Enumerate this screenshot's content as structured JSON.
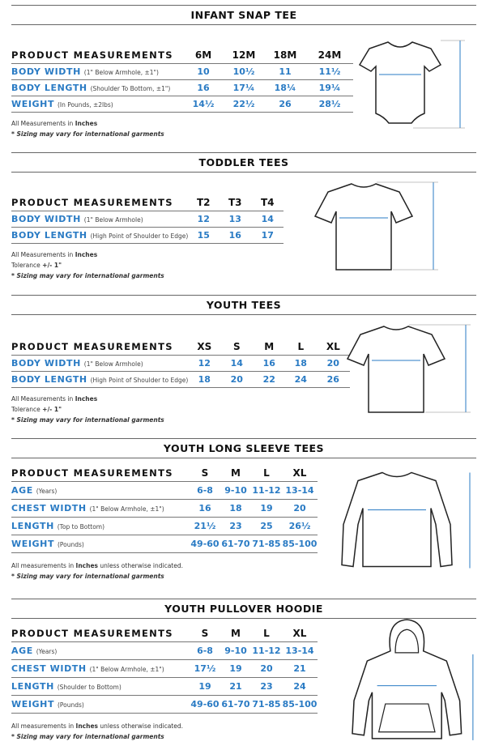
{
  "sections": [
    {
      "title": "INFANT SNAP TEE",
      "header": "PRODUCT MEASUREMENTS",
      "sizes": [
        "6M",
        "12M",
        "18M",
        "24M"
      ],
      "rows": [
        {
          "name": "BODY WIDTH",
          "sub": "(1\" Below Armhole, ±1\")",
          "values": [
            "10",
            "10½",
            "11",
            "11½"
          ]
        },
        {
          "name": "BODY LENGTH",
          "sub": "(Shoulder To Bottom, ±1\")",
          "values": [
            "16",
            "17¼",
            "18¼",
            "19¼"
          ]
        },
        {
          "name": "WEIGHT",
          "sub": "(In Pounds, ±2lbs)",
          "values": [
            "14½",
            "22½",
            "26",
            "28½"
          ]
        }
      ],
      "notes": [
        [
          {
            "t": "All Measurements in "
          },
          {
            "t": "Inches",
            "b": true
          }
        ],
        [
          {
            "t": "* Sizing may vary for international garments",
            "i": true
          }
        ]
      ],
      "garment": "onesie"
    },
    {
      "title": "TODDLER TEES",
      "header": "PRODUCT MEASUREMENTS",
      "sizes": [
        "T2",
        "T3",
        "T4"
      ],
      "rows": [
        {
          "name": "BODY WIDTH",
          "sub": "(1\" Below Armhole)",
          "values": [
            "12",
            "13",
            "14"
          ]
        },
        {
          "name": "BODY LENGTH",
          "sub": "(High Point of Shoulder to Edge)",
          "values": [
            "15",
            "16",
            "17"
          ]
        }
      ],
      "notes": [
        [
          {
            "t": "All Measurements in "
          },
          {
            "t": "Inches",
            "b": true
          }
        ],
        [
          {
            "t": "Tolerance "
          },
          {
            "t": "+/- 1\"",
            "b": true
          }
        ],
        [
          {
            "t": "* Sizing may vary for international garments",
            "i": true
          }
        ]
      ],
      "garment": "tee"
    },
    {
      "title": "YOUTH TEES",
      "header": "PRODUCT MEASUREMENTS",
      "sizes": [
        "XS",
        "S",
        "M",
        "L",
        "XL"
      ],
      "rows": [
        {
          "name": "BODY WIDTH",
          "sub": "(1\" Below Armhole)",
          "values": [
            "12",
            "14",
            "16",
            "18",
            "20"
          ]
        },
        {
          "name": "BODY LENGTH",
          "sub": "(High Point of Shoulder to Edge)",
          "values": [
            "18",
            "20",
            "22",
            "24",
            "26"
          ]
        }
      ],
      "notes": [
        [
          {
            "t": "All Measurements in "
          },
          {
            "t": "Inches",
            "b": true
          }
        ],
        [
          {
            "t": "Tolerance "
          },
          {
            "t": "+/- 1\"",
            "b": true
          }
        ],
        [
          {
            "t": "* Sizing may vary for international garments",
            "i": true
          }
        ]
      ],
      "garment": "tee"
    },
    {
      "title": "YOUTH LONG SLEEVE TEES",
      "header": "PRODUCT MEASUREMENTS",
      "sizes": [
        "S",
        "M",
        "L",
        "XL"
      ],
      "rows": [
        {
          "name": "AGE",
          "sub": "(Years)",
          "values": [
            "6-8",
            "9-10",
            "11-12",
            "13-14"
          ]
        },
        {
          "name": "CHEST WIDTH",
          "sub": "(1\" Below Armhole, ±1\")",
          "values": [
            "16",
            "18",
            "19",
            "20"
          ]
        },
        {
          "name": "LENGTH",
          "sub": "(Top to Bottom)",
          "values": [
            "21½",
            "23",
            "25",
            "26½"
          ]
        },
        {
          "name": "WEIGHT",
          "sub": "(Pounds)",
          "values": [
            "49-60",
            "61-70",
            "71-85",
            "85-100"
          ]
        }
      ],
      "notes": [
        [
          {
            "t": "All measurements in "
          },
          {
            "t": "Inches",
            "b": true
          },
          {
            "t": " unless otherwise indicated."
          }
        ],
        [
          {
            "t": "* Sizing may vary for international garments",
            "i": true
          }
        ]
      ],
      "garment": "longsleeve"
    },
    {
      "title": "YOUTH PULLOVER HOODIE",
      "header": "PRODUCT MEASUREMENTS",
      "sizes": [
        "S",
        "M",
        "L",
        "XL"
      ],
      "rows": [
        {
          "name": "AGE",
          "sub": "(Years)",
          "values": [
            "6-8",
            "9-10",
            "11-12",
            "13-14"
          ]
        },
        {
          "name": "CHEST WIDTH",
          "sub": "(1\" Below Armhole, ±1\")",
          "values": [
            "17½",
            "19",
            "20",
            "21"
          ]
        },
        {
          "name": "LENGTH",
          "sub": "(Shoulder to Bottom)",
          "values": [
            "19",
            "21",
            "23",
            "24"
          ]
        },
        {
          "name": "WEIGHT",
          "sub": "(Pounds)",
          "values": [
            "49-60",
            "61-70",
            "71-85",
            "85-100"
          ]
        }
      ],
      "notes": [
        [
          {
            "t": "All measurements in "
          },
          {
            "t": "Inches",
            "b": true
          },
          {
            "t": " unless otherwise indicated."
          }
        ],
        [
          {
            "t": "* Sizing may vary for international garments",
            "i": true
          }
        ]
      ],
      "garment": "hoodie"
    }
  ],
  "colors": {
    "accent": "#2a7bc4",
    "text": "#111111",
    "rule": "#666666"
  }
}
